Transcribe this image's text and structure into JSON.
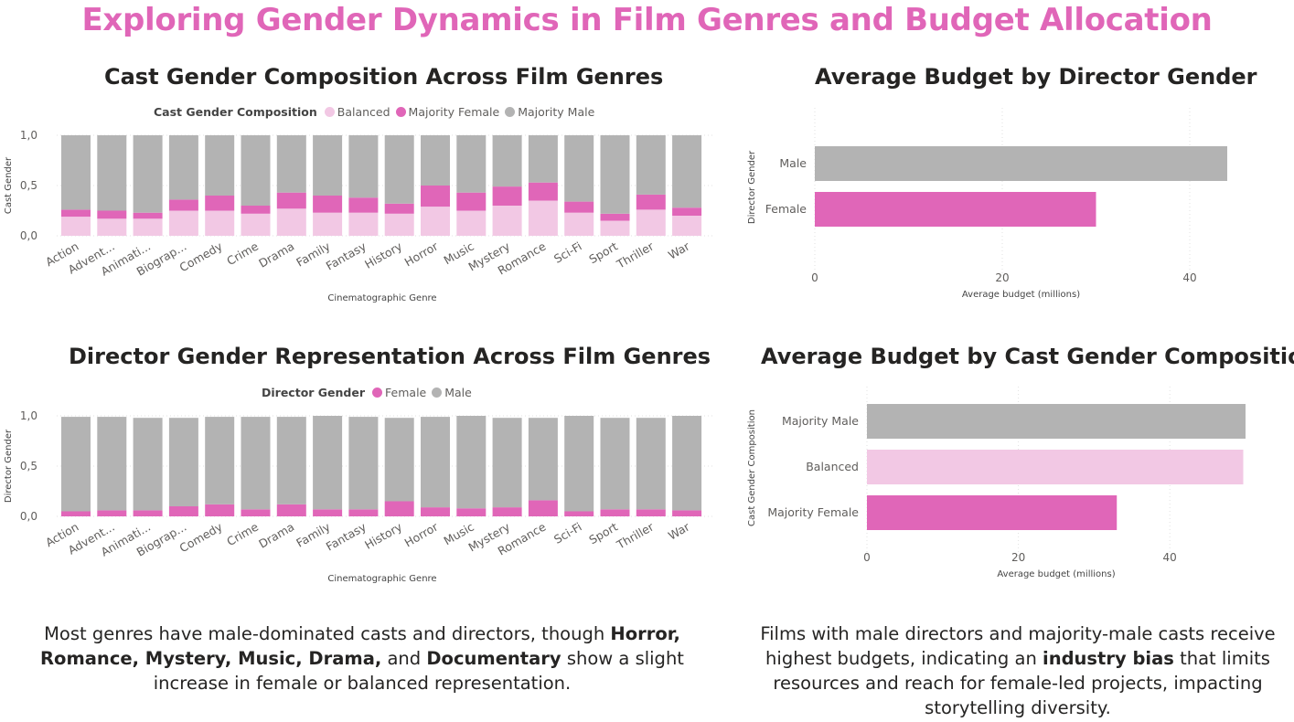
{
  "page_title": "Exploring Gender Dynamics in Film Genres and Budget Allocation",
  "colors": {
    "title_pink": "#E066B8",
    "male_gray": "#B3B3B3",
    "female_pink": "#E066B8",
    "balanced_light_pink": "#F2C8E4",
    "text": "#252423",
    "axis_text": "#605E5C"
  },
  "chart_data": [
    {
      "id": "cast",
      "type": "bar",
      "stacked": true,
      "title": "Cast Gender Composition Across Film Genres",
      "legend_title": "Cast Gender Composition",
      "legend_position": "top",
      "xlabel": "Cinematographic Genre",
      "ylabel": "Cast Gender",
      "ylim": [
        0,
        1
      ],
      "yticks": [
        "0,0",
        "0,5",
        "1,0"
      ],
      "categories": [
        "Action",
        "Advent...",
        "Animati...",
        "Biograp...",
        "Comedy",
        "Crime",
        "Drama",
        "Family",
        "Fantasy",
        "History",
        "Horror",
        "Music",
        "Mystery",
        "Romance",
        "Sci-Fi",
        "Sport",
        "Thriller",
        "War"
      ],
      "series": [
        {
          "name": "Balanced",
          "color": "#F2C8E4",
          "values": [
            0.19,
            0.17,
            0.17,
            0.25,
            0.25,
            0.22,
            0.27,
            0.23,
            0.23,
            0.22,
            0.29,
            0.25,
            0.3,
            0.35,
            0.23,
            0.15,
            0.26,
            0.2
          ]
        },
        {
          "name": "Majority Female",
          "color": "#E066B8",
          "values": [
            0.07,
            0.08,
            0.06,
            0.11,
            0.15,
            0.08,
            0.16,
            0.17,
            0.15,
            0.1,
            0.21,
            0.18,
            0.19,
            0.18,
            0.11,
            0.07,
            0.15,
            0.08
          ]
        },
        {
          "name": "Majority Male",
          "color": "#B3B3B3",
          "values": [
            0.74,
            0.75,
            0.77,
            0.64,
            0.6,
            0.7,
            0.57,
            0.6,
            0.62,
            0.68,
            0.5,
            0.57,
            0.51,
            0.47,
            0.66,
            0.78,
            0.59,
            0.72
          ]
        }
      ],
      "grid": true
    },
    {
      "id": "director",
      "type": "bar",
      "stacked": true,
      "title": "Director Gender Representation Across Film Genres",
      "legend_title": "Director Gender",
      "legend_position": "top",
      "xlabel": "Cinematographic Genre",
      "ylabel": "Director Gender",
      "ylim": [
        0,
        1
      ],
      "yticks": [
        "0,0",
        "0,5",
        "1,0"
      ],
      "categories": [
        "Action",
        "Advent...",
        "Animati...",
        "Biograp...",
        "Comedy",
        "Crime",
        "Drama",
        "Family",
        "Fantasy",
        "History",
        "Horror",
        "Music",
        "Mystery",
        "Romance",
        "Sci-Fi",
        "Sport",
        "Thriller",
        "War"
      ],
      "series": [
        {
          "name": "Female",
          "color": "#E066B8",
          "values": [
            0.05,
            0.06,
            0.06,
            0.1,
            0.12,
            0.07,
            0.12,
            0.07,
            0.07,
            0.15,
            0.09,
            0.08,
            0.09,
            0.16,
            0.05,
            0.07,
            0.07,
            0.06
          ]
        },
        {
          "name": "Male",
          "color": "#B3B3B3",
          "values": [
            0.94,
            0.93,
            0.92,
            0.88,
            0.87,
            0.92,
            0.87,
            0.93,
            0.92,
            0.83,
            0.9,
            0.92,
            0.89,
            0.82,
            0.95,
            0.91,
            0.91,
            0.94
          ]
        }
      ],
      "grid": true
    },
    {
      "id": "budget_director",
      "type": "bar",
      "orientation": "horizontal",
      "title": "Average Budget by Director Gender",
      "xlabel": "Average budget (millions)",
      "ylabel": "Director Gender",
      "xlim": [
        0,
        44
      ],
      "xticks": [
        0,
        20,
        40
      ],
      "categories": [
        "Male",
        "Female"
      ],
      "values": [
        44,
        30
      ],
      "colors": [
        "#B3B3B3",
        "#E066B8"
      ],
      "grid": true
    },
    {
      "id": "budget_cast",
      "type": "bar",
      "orientation": "horizontal",
      "title": "Average Budget by Cast Gender Composition",
      "xlabel": "Average budget (millions)",
      "ylabel": "Cast Gender Composition",
      "xlim": [
        0,
        50
      ],
      "xticks": [
        0,
        20,
        40
      ],
      "categories": [
        "Majority Male",
        "Balanced",
        "Majority Female"
      ],
      "values": [
        50,
        49.7,
        33
      ],
      "colors": [
        "#B3B3B3",
        "#F2C8E4",
        "#E066B8"
      ],
      "grid": true
    }
  ],
  "captions": {
    "left": {
      "p1": "Most genres have male-dominated casts and directors, though ",
      "b1": "Horror, Romance, Mystery, Music, Drama,",
      "p2": " and ",
      "b2": "Documentary",
      "p3": " show a slight increase in female or balanced representation."
    },
    "right": {
      "p1": "Films with male directors and majority-male casts receive highest budgets, indicating an ",
      "b1": "industry bias",
      "p2": " that limits resources and reach for female-led projects, impacting storytelling diversity."
    }
  }
}
